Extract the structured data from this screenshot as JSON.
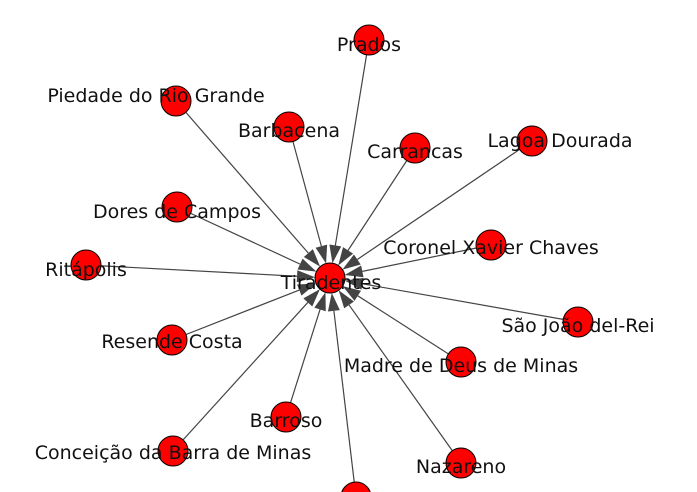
{
  "graph": {
    "type": "star-network",
    "edge_color": "#444444",
    "node_color": "#ff0000",
    "node_outline_color": "#000000",
    "hub": {
      "id": "tiradentes",
      "label": "Tiradentes"
    },
    "nodes": [
      {
        "id": "prados",
        "label": "Prados"
      },
      {
        "id": "piedade",
        "label": "Piedade do Rio Grande"
      },
      {
        "id": "barbacena",
        "label": "Barbacena"
      },
      {
        "id": "carrancas",
        "label": "Carrancas"
      },
      {
        "id": "lagoa",
        "label": "Lagoa Dourada"
      },
      {
        "id": "dores",
        "label": "Dores de Campos"
      },
      {
        "id": "coronel",
        "label": "Coronel Xavier Chaves"
      },
      {
        "id": "ritapolis",
        "label": "Ritápolis"
      },
      {
        "id": "saojoao",
        "label": "São João del-Rei"
      },
      {
        "id": "resende",
        "label": "Resende Costa"
      },
      {
        "id": "madre",
        "label": "Madre de Deus de Minas"
      },
      {
        "id": "barroso",
        "label": "Barroso"
      },
      {
        "id": "conceicao",
        "label": "Conceição da Barra de Minas"
      },
      {
        "id": "nazareno",
        "label": "Nazareno"
      },
      {
        "id": "bottom",
        "label": ""
      }
    ],
    "edges": [
      {
        "from": "prados",
        "to": "tiradentes"
      },
      {
        "from": "piedade",
        "to": "tiradentes"
      },
      {
        "from": "barbacena",
        "to": "tiradentes"
      },
      {
        "from": "carrancas",
        "to": "tiradentes"
      },
      {
        "from": "lagoa",
        "to": "tiradentes"
      },
      {
        "from": "dores",
        "to": "tiradentes"
      },
      {
        "from": "coronel",
        "to": "tiradentes"
      },
      {
        "from": "ritapolis",
        "to": "tiradentes"
      },
      {
        "from": "saojoao",
        "to": "tiradentes"
      },
      {
        "from": "resende",
        "to": "tiradentes"
      },
      {
        "from": "madre",
        "to": "tiradentes"
      },
      {
        "from": "barroso",
        "to": "tiradentes"
      },
      {
        "from": "conceicao",
        "to": "tiradentes"
      },
      {
        "from": "nazareno",
        "to": "tiradentes"
      },
      {
        "from": "bottom",
        "to": "tiradentes"
      }
    ]
  }
}
